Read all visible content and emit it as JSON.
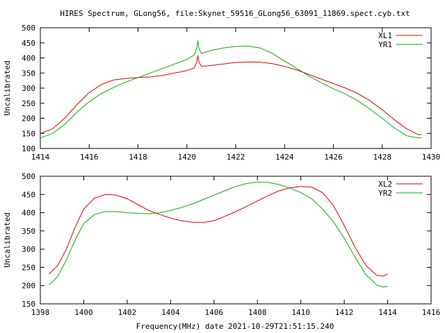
{
  "title": "HIRES Spectrum, GLong56, file:Skynet_59516_GLong56_63091_11869.spect.cyb.txt",
  "xlabel": "Frequency(MHz) date 2021-10-29T21:51:15.240",
  "colors": {
    "red": "#e00000",
    "green": "#00b000",
    "axis": "#000000"
  },
  "chart_data": [
    {
      "type": "line",
      "ylabel": "Uncalibrated",
      "xlim": [
        1414,
        1430
      ],
      "ylim": [
        100,
        500
      ],
      "x_ticks": [
        "1414",
        "1416",
        "1418",
        "1420",
        "1422",
        "1424",
        "1426",
        "1428",
        "1430"
      ],
      "y_ticks": [
        "100",
        "150",
        "200",
        "250",
        "300",
        "350",
        "400",
        "450",
        "500"
      ],
      "grid": false,
      "legend": "top-right",
      "series": [
        {
          "name": "XL1",
          "color": "#e00000",
          "x": [
            1414.0,
            1414.5,
            1415.0,
            1415.5,
            1416.0,
            1416.5,
            1417.0,
            1417.5,
            1418.0,
            1418.5,
            1419.0,
            1419.5,
            1420.0,
            1420.3,
            1420.4,
            1420.45,
            1420.5,
            1420.6,
            1421.0,
            1421.5,
            1422.0,
            1422.5,
            1423.0,
            1423.5,
            1424.0,
            1424.5,
            1425.0,
            1425.5,
            1426.0,
            1426.5,
            1427.0,
            1427.5,
            1428.0,
            1428.5,
            1429.0,
            1429.5,
            1429.6
          ],
          "y": [
            150,
            165,
            200,
            245,
            285,
            312,
            327,
            332,
            335,
            337,
            342,
            350,
            358,
            367,
            385,
            408,
            385,
            372,
            375,
            380,
            385,
            387,
            386,
            381,
            372,
            360,
            345,
            330,
            315,
            300,
            282,
            258,
            228,
            195,
            165,
            145,
            147
          ]
        },
        {
          "name": "YR1",
          "color": "#00b000",
          "x": [
            1414.0,
            1414.5,
            1415.0,
            1415.5,
            1416.0,
            1416.5,
            1417.0,
            1417.5,
            1418.0,
            1418.5,
            1419.0,
            1419.5,
            1420.0,
            1420.3,
            1420.4,
            1420.45,
            1420.5,
            1420.6,
            1421.0,
            1421.5,
            1422.0,
            1422.5,
            1423.0,
            1423.5,
            1424.0,
            1424.5,
            1425.0,
            1425.5,
            1426.0,
            1426.5,
            1427.0,
            1427.5,
            1428.0,
            1428.5,
            1429.0,
            1429.5,
            1429.6
          ],
          "y": [
            135,
            150,
            180,
            220,
            255,
            282,
            302,
            320,
            335,
            350,
            365,
            380,
            395,
            410,
            430,
            458,
            430,
            415,
            425,
            433,
            438,
            439,
            433,
            415,
            390,
            365,
            340,
            318,
            298,
            280,
            258,
            230,
            200,
            168,
            142,
            135,
            136
          ]
        }
      ]
    },
    {
      "type": "line",
      "ylabel": "Uncalibrated",
      "xlim": [
        1398,
        1416
      ],
      "ylim": [
        150,
        500
      ],
      "x_ticks": [
        "1398",
        "1400",
        "1402",
        "1404",
        "1406",
        "1408",
        "1410",
        "1412",
        "1414",
        "1416"
      ],
      "y_ticks": [
        "150",
        "200",
        "250",
        "300",
        "350",
        "400",
        "450",
        "500"
      ],
      "grid": false,
      "legend": "top-right",
      "series": [
        {
          "name": "XL2",
          "color": "#e00000",
          "x": [
            1398.4,
            1398.8,
            1399.2,
            1399.6,
            1400.0,
            1400.5,
            1401.0,
            1401.5,
            1402.0,
            1402.5,
            1403.0,
            1403.5,
            1404.0,
            1404.5,
            1405.0,
            1405.5,
            1406.0,
            1406.5,
            1407.0,
            1407.5,
            1408.0,
            1408.5,
            1409.0,
            1409.5,
            1410.0,
            1410.5,
            1411.0,
            1411.5,
            1412.0,
            1412.5,
            1413.0,
            1413.5,
            1413.8,
            1414.0
          ],
          "y": [
            232,
            255,
            300,
            360,
            410,
            440,
            450,
            448,
            438,
            422,
            406,
            395,
            385,
            378,
            374,
            373,
            378,
            390,
            403,
            417,
            432,
            447,
            460,
            468,
            472,
            470,
            455,
            420,
            365,
            305,
            255,
            228,
            226,
            232
          ]
        },
        {
          "name": "YR2",
          "color": "#00b000",
          "x": [
            1398.4,
            1398.8,
            1399.2,
            1399.6,
            1400.0,
            1400.5,
            1401.0,
            1401.5,
            1402.0,
            1402.5,
            1403.0,
            1403.5,
            1404.0,
            1404.5,
            1405.0,
            1405.5,
            1406.0,
            1406.5,
            1407.0,
            1407.5,
            1408.0,
            1408.5,
            1409.0,
            1409.5,
            1410.0,
            1410.5,
            1411.0,
            1411.5,
            1412.0,
            1412.5,
            1413.0,
            1413.5,
            1413.8,
            1414.0
          ],
          "y": [
            202,
            225,
            270,
            325,
            370,
            395,
            403,
            403,
            400,
            398,
            397,
            400,
            406,
            414,
            424,
            436,
            448,
            460,
            472,
            480,
            484,
            483,
            477,
            467,
            455,
            438,
            410,
            375,
            330,
            278,
            230,
            202,
            196,
            198
          ]
        }
      ]
    }
  ]
}
